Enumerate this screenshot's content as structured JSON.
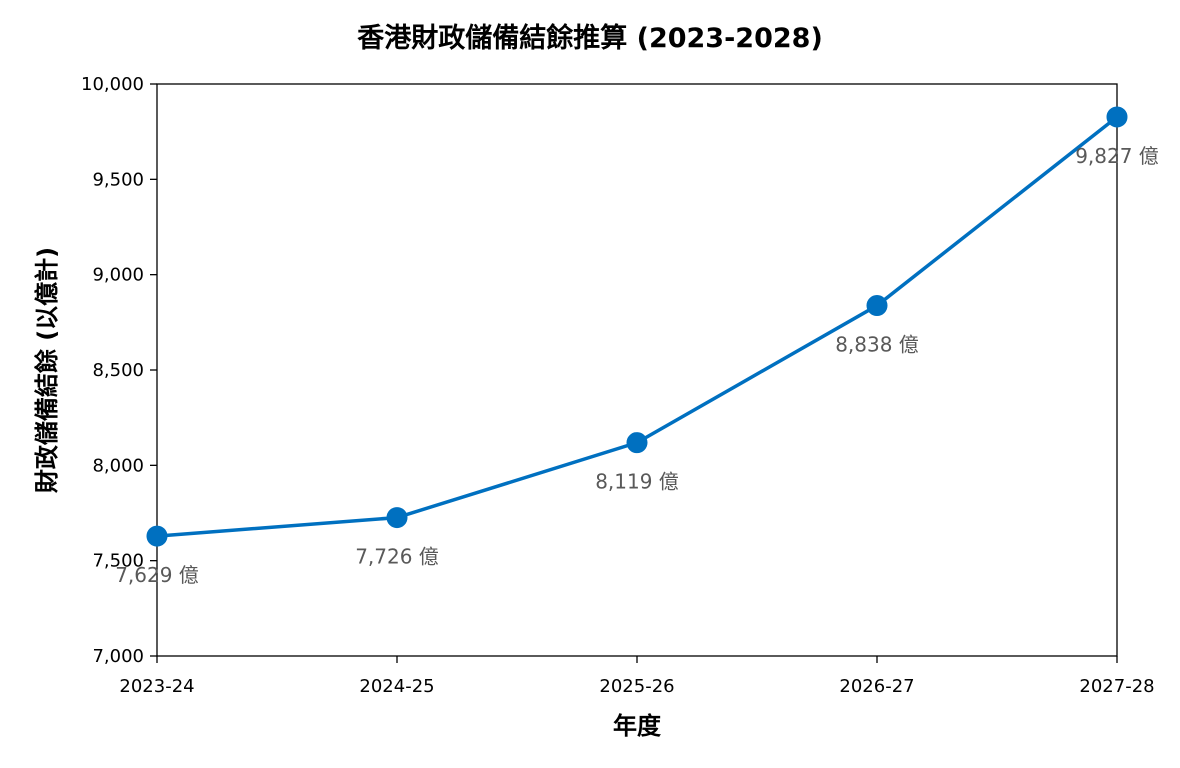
{
  "chart_data": {
    "type": "line",
    "title": "香港財政儲備結餘推算 (2023-2028)",
    "xlabel": "年度",
    "ylabel": "財政儲備結餘 (以億計)",
    "categories": [
      "2023-24",
      "2024-25",
      "2025-26",
      "2026-27",
      "2027-28"
    ],
    "series": [
      {
        "values": [
          7629,
          7726,
          8119,
          8838,
          9827
        ],
        "data_labels": [
          "7,629 億",
          "7,726 億",
          "8,119 億",
          "8,838 億",
          "9,827 億"
        ]
      }
    ],
    "ylim": [
      7000,
      10000
    ],
    "yticks": [
      7000,
      7500,
      8000,
      8500,
      9000,
      9500,
      10000
    ],
    "ytick_labels": [
      "7,000",
      "7,500",
      "8,000",
      "8,500",
      "9,000",
      "9,500",
      "10,000"
    ],
    "grid": false,
    "legend": "none",
    "colors": {
      "line": "#0070c0",
      "marker": "#0070c0",
      "axis": "#000000",
      "data_label": "#595959"
    }
  }
}
